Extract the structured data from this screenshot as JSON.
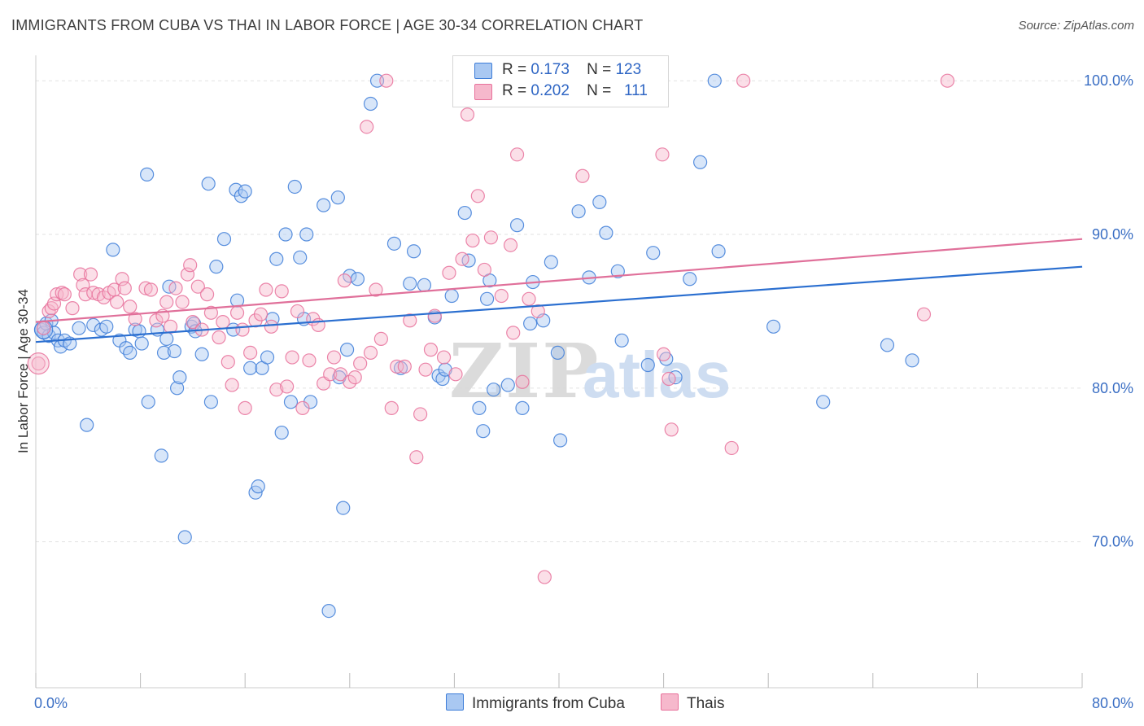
{
  "header": {
    "title": "IMMIGRANTS FROM CUBA VS THAI IN LABOR FORCE | AGE 30-34 CORRELATION CHART",
    "source": "Source: ZipAtlas.com"
  },
  "legend": {
    "r_label": "R =",
    "n_label": "N =",
    "rows": [
      {
        "r": "0.173",
        "n": "123"
      },
      {
        "r": "0.202",
        "n": "111"
      }
    ]
  },
  "bottom_legend": [
    "Immigrants from Cuba",
    "Thais"
  ],
  "watermark": {
    "zip": "ZIP",
    "atlas": "atlas"
  },
  "colors": {
    "blue": "#3d7dd8",
    "blue_fill": "#a9c8f2",
    "blue_line": "#2b6fd0",
    "pink": "#e8719b",
    "pink_fill": "#f6b8cc",
    "pink_line": "#e0709a",
    "tick_label": "#3b6fc4"
  },
  "chart_data": {
    "type": "scatter",
    "title": "IMMIGRANTS FROM CUBA VS THAI IN LABOR FORCE | AGE 30-34 CORRELATION CHART",
    "xlabel": "",
    "ylabel": "In Labor Force | Age 30-34",
    "xlim": [
      0,
      80
    ],
    "ylim": [
      60.5,
      102.5
    ],
    "x_tick_labels": [
      "0.0%",
      "80.0%"
    ],
    "y_ticks": [
      70,
      80,
      90,
      100
    ],
    "y_tick_labels": [
      "70.0%",
      "80.0%",
      "90.0%",
      "100.0%"
    ],
    "grid": true,
    "legend_position": "top-center",
    "series": [
      {
        "name": "Immigrants from Cuba",
        "r": 0.173,
        "n": 123,
        "trend": [
          [
            0,
            83.0
          ],
          [
            80,
            87.9
          ]
        ],
        "points": [
          [
            0.4,
            83.8
          ],
          [
            0.6,
            83.6
          ],
          [
            0.8,
            84.2
          ],
          [
            1.0,
            83.4
          ],
          [
            1.2,
            84.4
          ],
          [
            1.4,
            83.6
          ],
          [
            1.7,
            83.1
          ],
          [
            1.9,
            82.7
          ],
          [
            2.2,
            83.1
          ],
          [
            2.6,
            82.9
          ],
          [
            3.3,
            83.9
          ],
          [
            3.9,
            77.6
          ],
          [
            4.4,
            84.1
          ],
          [
            5.0,
            83.8
          ],
          [
            5.4,
            84.0
          ],
          [
            5.9,
            89.0
          ],
          [
            6.4,
            83.1
          ],
          [
            6.9,
            82.6
          ],
          [
            7.2,
            82.3
          ],
          [
            7.6,
            83.8
          ],
          [
            7.9,
            83.7
          ],
          [
            8.1,
            82.9
          ],
          [
            8.5,
            93.9
          ],
          [
            8.6,
            79.1
          ],
          [
            9.3,
            83.8
          ],
          [
            9.6,
            75.6
          ],
          [
            9.8,
            82.3
          ],
          [
            10.0,
            83.2
          ],
          [
            10.2,
            86.6
          ],
          [
            10.6,
            82.4
          ],
          [
            10.8,
            80.0
          ],
          [
            11.0,
            80.7
          ],
          [
            11.4,
            70.3
          ],
          [
            11.9,
            84.0
          ],
          [
            12.1,
            84.2
          ],
          [
            12.2,
            83.7
          ],
          [
            12.7,
            82.2
          ],
          [
            13.2,
            93.3
          ],
          [
            13.4,
            79.1
          ],
          [
            13.8,
            87.9
          ],
          [
            14.4,
            89.7
          ],
          [
            15.1,
            83.8
          ],
          [
            15.4,
            85.7
          ],
          [
            15.3,
            92.9
          ],
          [
            15.7,
            92.5
          ],
          [
            16.0,
            92.8
          ],
          [
            16.4,
            81.3
          ],
          [
            16.8,
            73.2
          ],
          [
            17.0,
            73.6
          ],
          [
            17.3,
            81.3
          ],
          [
            17.7,
            82.0
          ],
          [
            18.1,
            84.5
          ],
          [
            18.4,
            88.4
          ],
          [
            18.8,
            77.1
          ],
          [
            19.1,
            90.0
          ],
          [
            19.5,
            79.1
          ],
          [
            19.8,
            93.1
          ],
          [
            20.2,
            88.5
          ],
          [
            20.5,
            84.5
          ],
          [
            20.7,
            90.0
          ],
          [
            21.0,
            79.1
          ],
          [
            22.0,
            91.9
          ],
          [
            22.4,
            65.5
          ],
          [
            23.2,
            80.7
          ],
          [
            23.1,
            92.4
          ],
          [
            23.5,
            72.2
          ],
          [
            23.8,
            82.5
          ],
          [
            24.0,
            87.3
          ],
          [
            24.6,
            87.1
          ],
          [
            25.6,
            98.5
          ],
          [
            26.1,
            100.0
          ],
          [
            27.4,
            89.4
          ],
          [
            27.9,
            81.3
          ],
          [
            28.6,
            86.8
          ],
          [
            28.9,
            88.9
          ],
          [
            29.7,
            86.7
          ],
          [
            30.5,
            84.6
          ],
          [
            30.8,
            80.8
          ],
          [
            31.1,
            80.6
          ],
          [
            31.3,
            81.2
          ],
          [
            31.8,
            86.0
          ],
          [
            32.6,
            100.0
          ],
          [
            32.8,
            91.4
          ],
          [
            33.1,
            88.3
          ],
          [
            33.9,
            78.7
          ],
          [
            34.2,
            77.2
          ],
          [
            34.5,
            85.8
          ],
          [
            34.7,
            87.0
          ],
          [
            35.0,
            79.9
          ],
          [
            36.1,
            80.2
          ],
          [
            36.8,
            90.6
          ],
          [
            37.2,
            78.7
          ],
          [
            37.8,
            84.2
          ],
          [
            38.0,
            86.9
          ],
          [
            38.8,
            84.4
          ],
          [
            39.4,
            88.2
          ],
          [
            39.9,
            82.3
          ],
          [
            40.1,
            76.6
          ],
          [
            41.5,
            91.5
          ],
          [
            42.3,
            87.2
          ],
          [
            43.1,
            92.1
          ],
          [
            43.6,
            90.1
          ],
          [
            44.5,
            87.6
          ],
          [
            44.8,
            83.1
          ],
          [
            46.8,
            81.5
          ],
          [
            47.2,
            88.8
          ],
          [
            48.2,
            81.9
          ],
          [
            48.9,
            80.7
          ],
          [
            50.0,
            87.1
          ],
          [
            50.8,
            94.7
          ],
          [
            51.9,
            100.0
          ],
          [
            52.2,
            88.9
          ],
          [
            56.4,
            84.0
          ],
          [
            60.2,
            79.1
          ],
          [
            65.1,
            82.8
          ],
          [
            67.0,
            81.8
          ]
        ]
      },
      {
        "name": "Thais",
        "r": 0.202,
        "n": 111,
        "trend": [
          [
            0,
            84.3
          ],
          [
            80,
            89.7
          ]
        ],
        "points": [
          [
            0.2,
            81.6
          ],
          [
            0.6,
            83.9
          ],
          [
            1.0,
            85.0
          ],
          [
            1.2,
            85.2
          ],
          [
            1.4,
            85.5
          ],
          [
            1.6,
            86.1
          ],
          [
            2.0,
            86.2
          ],
          [
            2.2,
            86.1
          ],
          [
            2.8,
            85.2
          ],
          [
            3.4,
            87.4
          ],
          [
            3.6,
            86.7
          ],
          [
            3.8,
            86.1
          ],
          [
            4.2,
            87.4
          ],
          [
            4.4,
            86.2
          ],
          [
            4.8,
            86.1
          ],
          [
            5.2,
            85.9
          ],
          [
            5.6,
            86.2
          ],
          [
            6.0,
            86.4
          ],
          [
            6.2,
            85.6
          ],
          [
            6.6,
            87.1
          ],
          [
            6.8,
            86.5
          ],
          [
            7.2,
            85.3
          ],
          [
            7.6,
            84.5
          ],
          [
            8.4,
            86.5
          ],
          [
            8.8,
            86.4
          ],
          [
            9.2,
            84.4
          ],
          [
            9.7,
            84.7
          ],
          [
            10.0,
            85.6
          ],
          [
            10.3,
            84.0
          ],
          [
            10.7,
            86.5
          ],
          [
            11.2,
            85.6
          ],
          [
            11.6,
            87.4
          ],
          [
            11.8,
            88.0
          ],
          [
            12.0,
            84.3
          ],
          [
            12.4,
            86.6
          ],
          [
            12.7,
            83.8
          ],
          [
            13.1,
            86.1
          ],
          [
            13.4,
            84.9
          ],
          [
            14.0,
            83.3
          ],
          [
            14.3,
            84.3
          ],
          [
            14.7,
            81.7
          ],
          [
            15.0,
            80.2
          ],
          [
            15.4,
            84.9
          ],
          [
            15.8,
            83.8
          ],
          [
            16.0,
            78.7
          ],
          [
            16.4,
            82.3
          ],
          [
            16.8,
            84.4
          ],
          [
            17.2,
            84.8
          ],
          [
            17.6,
            86.4
          ],
          [
            18.0,
            84.0
          ],
          [
            18.4,
            79.9
          ],
          [
            18.8,
            86.3
          ],
          [
            19.2,
            80.1
          ],
          [
            19.6,
            82.0
          ],
          [
            20.0,
            85.0
          ],
          [
            20.4,
            78.7
          ],
          [
            20.9,
            81.8
          ],
          [
            21.2,
            84.5
          ],
          [
            21.6,
            84.1
          ],
          [
            22.0,
            80.3
          ],
          [
            22.5,
            80.9
          ],
          [
            22.8,
            82.0
          ],
          [
            23.3,
            80.9
          ],
          [
            23.6,
            87.0
          ],
          [
            24.0,
            80.4
          ],
          [
            24.4,
            80.7
          ],
          [
            24.8,
            81.6
          ],
          [
            25.3,
            97.0
          ],
          [
            25.6,
            82.3
          ],
          [
            26.0,
            86.4
          ],
          [
            26.4,
            83.2
          ],
          [
            26.8,
            100.0
          ],
          [
            27.2,
            78.7
          ],
          [
            27.6,
            81.4
          ],
          [
            28.2,
            81.4
          ],
          [
            28.6,
            84.4
          ],
          [
            29.1,
            75.5
          ],
          [
            29.4,
            78.3
          ],
          [
            29.8,
            81.2
          ],
          [
            30.2,
            82.5
          ],
          [
            30.5,
            84.7
          ],
          [
            31.2,
            82.0
          ],
          [
            31.6,
            87.5
          ],
          [
            32.1,
            80.9
          ],
          [
            32.6,
            88.4
          ],
          [
            33.0,
            97.8
          ],
          [
            33.4,
            89.6
          ],
          [
            33.8,
            92.5
          ],
          [
            34.3,
            87.7
          ],
          [
            34.8,
            89.8
          ],
          [
            35.6,
            86.0
          ],
          [
            36.3,
            89.3
          ],
          [
            36.5,
            83.6
          ],
          [
            36.8,
            95.2
          ],
          [
            37.2,
            80.4
          ],
          [
            37.7,
            85.8
          ],
          [
            38.4,
            85.0
          ],
          [
            38.9,
            67.7
          ],
          [
            40.0,
            100.0
          ],
          [
            41.8,
            93.8
          ],
          [
            47.4,
            100.0
          ],
          [
            47.9,
            95.2
          ],
          [
            48.0,
            82.2
          ],
          [
            48.4,
            80.6
          ],
          [
            48.6,
            77.3
          ],
          [
            53.2,
            76.1
          ],
          [
            54.1,
            100.0
          ],
          [
            69.7,
            100.0
          ],
          [
            67.9,
            84.8
          ]
        ]
      }
    ]
  }
}
